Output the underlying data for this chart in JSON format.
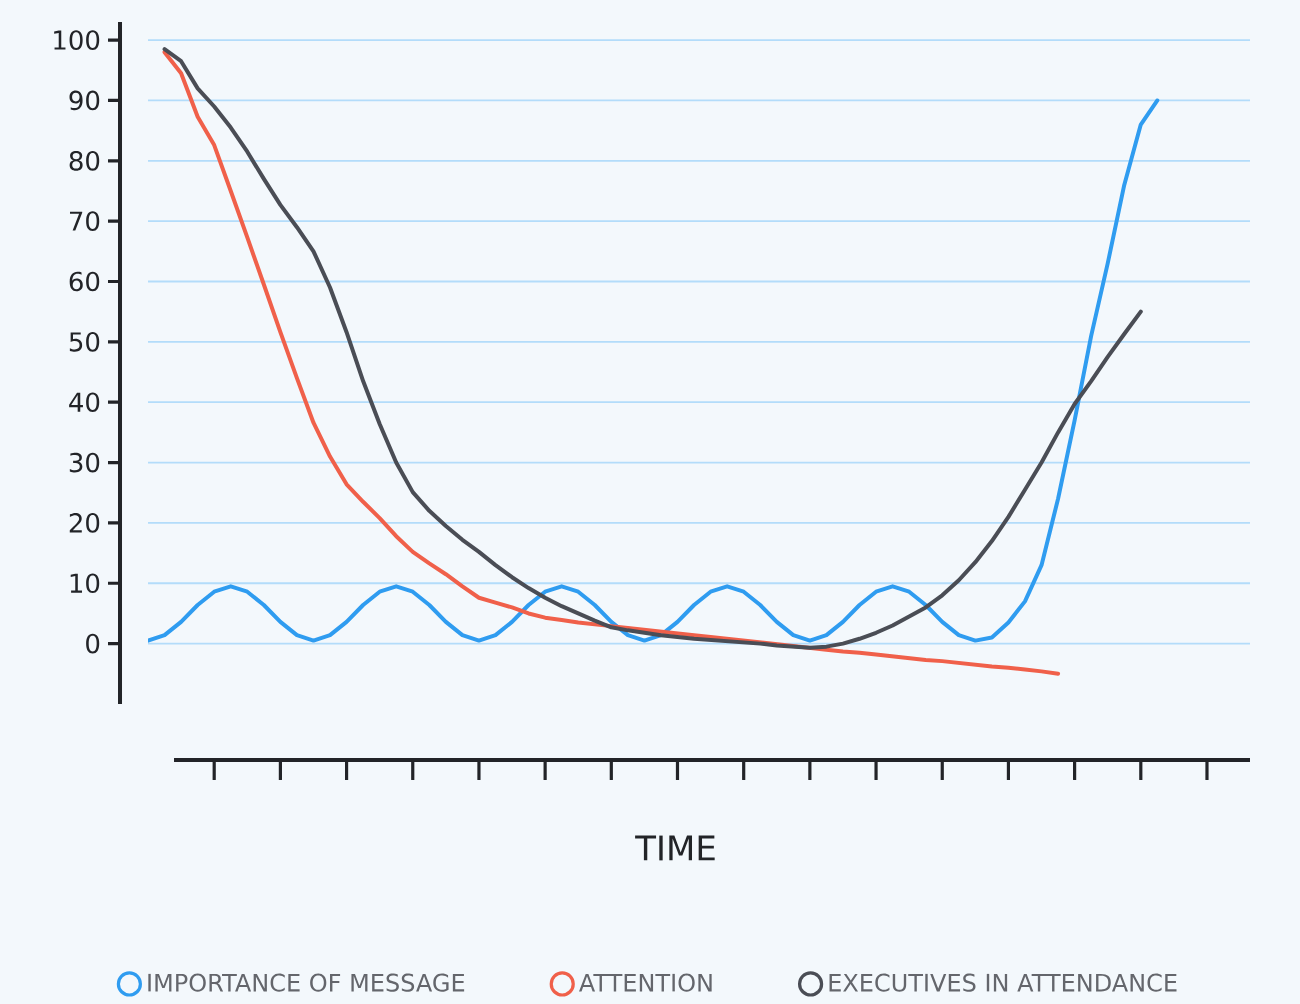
{
  "chart_data": {
    "type": "line",
    "xlabel": "TIME",
    "ylim": [
      -10,
      103
    ],
    "categories": [
      null,
      null,
      null,
      null,
      null,
      null,
      null,
      null,
      null,
      null,
      null,
      null,
      null,
      null,
      null,
      null,
      null,
      null,
      null,
      null,
      null,
      null,
      null,
      null,
      null,
      null,
      null,
      null,
      null,
      null,
      null,
      null,
      null,
      null,
      null,
      null,
      null,
      null,
      null,
      null,
      null,
      null,
      null,
      null,
      null,
      null,
      null,
      null,
      null,
      null,
      null,
      null,
      null,
      null,
      null,
      null,
      null,
      null,
      null,
      null,
      null,
      null,
      null,
      null,
      null,
      null,
      null
    ],
    "yticks": [
      0,
      10,
      20,
      30,
      40,
      50,
      60,
      70,
      80,
      90,
      100
    ],
    "tick_labels": "y",
    "grid": true,
    "legend": "bottom",
    "marker": "none",
    "line_style": "solid",
    "series": [
      {
        "name": "IMPORTANCE OF MESSAGE",
        "color": "#2f9cf0",
        "values": [
          0.5,
          1.4,
          3.6,
          6.4,
          8.6,
          9.5,
          8.6,
          6.4,
          3.6,
          1.4,
          0.5,
          1.4,
          3.6,
          6.4,
          8.6,
          9.5,
          8.6,
          6.4,
          3.6,
          1.4,
          0.5,
          1.4,
          3.6,
          6.4,
          8.6,
          9.5,
          8.6,
          6.4,
          3.6,
          1.4,
          0.5,
          1.4,
          3.6,
          6.4,
          8.6,
          9.5,
          8.6,
          6.4,
          3.6,
          1.4,
          0.5,
          1.4,
          3.6,
          6.4,
          8.6,
          9.5,
          8.6,
          6.4,
          3.6,
          1.4,
          0.5,
          1.0,
          3.5,
          7,
          13,
          24,
          37,
          51,
          63,
          76,
          86,
          90,
          null,
          null,
          null,
          null,
          null
        ]
      },
      {
        "name": "ATTENTION",
        "color": "#f0604a",
        "values": [
          null,
          98,
          94.5,
          87.3,
          82.6,
          75,
          67.3,
          59.5,
          51.6,
          44,
          36.6,
          31,
          26.4,
          23.5,
          20.8,
          17.8,
          15.2,
          13.3,
          11.5,
          9.5,
          7.6,
          6.8,
          6,
          5,
          4.3,
          3.9,
          3.5,
          3.2,
          2.9,
          2.6,
          2.3,
          2.0,
          1.7,
          1.4,
          1.1,
          0.8,
          0.5,
          0.2,
          -0.1,
          -0.4,
          -0.7,
          -1.0,
          -1.3,
          -1.5,
          -1.8,
          -2.1,
          -2.4,
          -2.7,
          -2.9,
          -3.2,
          -3.5,
          -3.8,
          -4.0,
          -4.3,
          -4.6,
          -5,
          null,
          null,
          null,
          null,
          null,
          null,
          null,
          null,
          null,
          null,
          null
        ]
      },
      {
        "name": "EXECUTIVES IN ATTENDANCE",
        "color": "#4a4d55",
        "values": [
          null,
          98.5,
          96.5,
          92,
          89,
          85.5,
          81.5,
          77,
          72.7,
          69,
          65,
          59,
          51.6,
          43.5,
          36.4,
          30,
          25.1,
          22,
          19.5,
          17.2,
          15.2,
          13,
          11,
          9.2,
          7.6,
          6.2,
          5,
          3.8,
          2.7,
          2.2,
          1.8,
          1.4,
          1.1,
          0.8,
          0.6,
          0.4,
          0.2,
          0,
          -0.3,
          -0.5,
          -0.7,
          -0.5,
          0,
          0.8,
          1.8,
          3,
          4.5,
          6,
          8,
          10.5,
          13.5,
          17,
          21,
          25.5,
          30,
          35,
          39.7,
          43.5,
          47.5,
          51.3,
          55,
          null,
          null,
          null,
          null,
          null,
          null
        ]
      }
    ]
  }
}
